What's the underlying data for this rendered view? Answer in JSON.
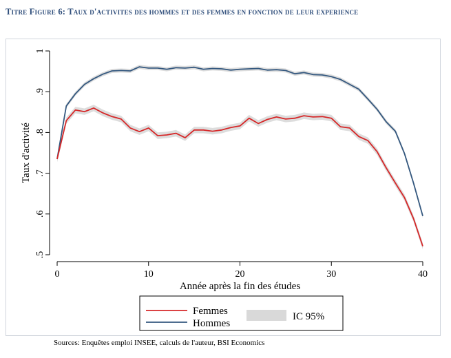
{
  "figure_title": "Titre Figure 6: Taux d'activites des hommes et des femmes en fonction de leur experience",
  "source_text": "Sources: Enquêtes emploi INSEE, calculs de l'auteur, BSI Economics",
  "colors": {
    "femmes": "#d62728",
    "hommes": "#34587f",
    "ci": "#d9d9d9",
    "title": "#2e4d7a"
  },
  "chart_data": {
    "type": "line",
    "title": "",
    "xlabel": "Année après la fin des études",
    "ylabel": "Taux d'activité",
    "xlim": [
      0,
      40
    ],
    "ylim": [
      0.5,
      1.0
    ],
    "x_ticks": [
      0,
      10,
      20,
      30,
      40
    ],
    "y_ticks": [
      0.5,
      0.6,
      0.7,
      0.8,
      0.9,
      1.0
    ],
    "x_tick_labels": [
      "0",
      "10",
      "20",
      "30",
      "40"
    ],
    "y_tick_labels": [
      ".5",
      ".6",
      ".7",
      ".8",
      ".9",
      "1"
    ],
    "x": [
      0,
      1,
      2,
      3,
      4,
      5,
      6,
      7,
      8,
      9,
      10,
      11,
      12,
      13,
      14,
      15,
      16,
      17,
      18,
      19,
      20,
      21,
      22,
      23,
      24,
      25,
      26,
      27,
      28,
      29,
      30,
      31,
      32,
      33,
      34,
      35,
      36,
      37,
      38,
      39,
      40
    ],
    "series": [
      {
        "name": "Hommes",
        "color": "#34587f",
        "values": [
          0.735,
          0.865,
          0.895,
          0.918,
          0.932,
          0.943,
          0.951,
          0.952,
          0.951,
          0.961,
          0.958,
          0.958,
          0.955,
          0.959,
          0.958,
          0.96,
          0.955,
          0.957,
          0.956,
          0.953,
          0.955,
          0.956,
          0.957,
          0.953,
          0.954,
          0.952,
          0.944,
          0.947,
          0.942,
          0.941,
          0.937,
          0.93,
          0.918,
          0.906,
          0.882,
          0.857,
          0.826,
          0.803,
          0.748,
          0.675,
          0.595
        ],
        "ci_halfwidth": 0.005
      },
      {
        "name": "Femmes",
        "color": "#d62728",
        "values": [
          0.735,
          0.829,
          0.855,
          0.851,
          0.86,
          0.848,
          0.839,
          0.833,
          0.811,
          0.802,
          0.811,
          0.792,
          0.794,
          0.798,
          0.787,
          0.806,
          0.806,
          0.803,
          0.806,
          0.812,
          0.816,
          0.835,
          0.822,
          0.832,
          0.838,
          0.833,
          0.835,
          0.841,
          0.838,
          0.839,
          0.835,
          0.814,
          0.811,
          0.79,
          0.78,
          0.753,
          0.713,
          0.676,
          0.64,
          0.588,
          0.521
        ],
        "ci_halfwidth": 0.008
      }
    ],
    "legend": {
      "position": "bottom",
      "entries": [
        "Femmes",
        "Hommes",
        "IC 95%"
      ]
    }
  }
}
